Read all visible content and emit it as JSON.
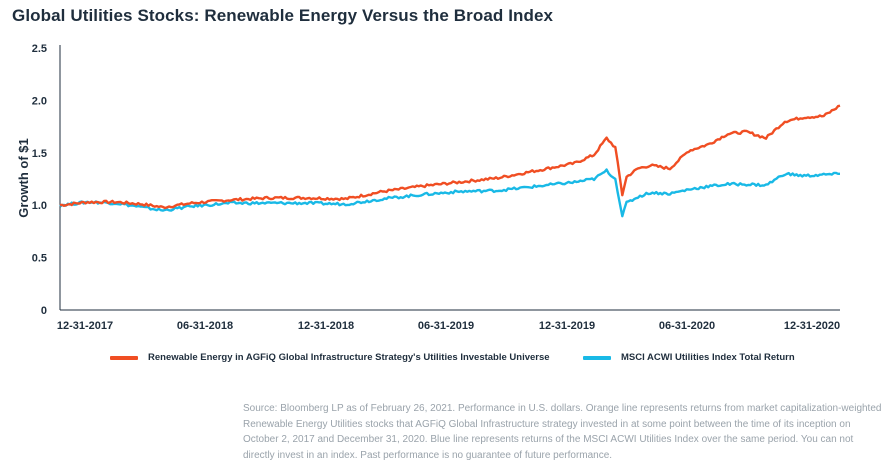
{
  "title": "Global Utilities Stocks: Renewable Energy Versus the Broad Index",
  "source_note": "Source: Bloomberg LP as of February 26, 2021. Performance in U.S. dollars. Orange line represents returns from market capitalization-weighted Renewable Energy Utilities stocks that AGFiQ Global Infrastructure strategy invested in at some point between the time of its inception on October 2, 2017 and December 31, 2020. Blue line represents returns of the MSCI ACWI Utilities Index over the same period. You can not directly invest in an index. Past performance is no guarantee of future performance.",
  "chart_data": {
    "type": "line",
    "title": "Global Utilities Stocks: Renewable Energy Versus the Broad Index",
    "ylabel": "Growth of $1",
    "xlabel": "",
    "ylim": [
      0,
      2.5
    ],
    "yticks": [
      "0",
      "0.5",
      "1.0",
      "1.5",
      "2.0",
      "2.5"
    ],
    "xticks": [
      "12-31-2017",
      "06-31-2018",
      "12-31-2018",
      "06-31-2019",
      "12-31-2019",
      "06-31-2020",
      "12-31-2020"
    ],
    "grid": false,
    "legend_position": "bottom",
    "x": [
      "2017-10-02",
      "2017-11-15",
      "2017-12-31",
      "2018-02-10",
      "2018-03-15",
      "2018-04-30",
      "2018-06-30",
      "2018-08-31",
      "2018-10-31",
      "2018-12-31",
      "2019-02-28",
      "2019-04-30",
      "2019-06-30",
      "2019-08-31",
      "2019-10-31",
      "2019-12-31",
      "2020-01-31",
      "2020-02-20",
      "2020-03-05",
      "2020-03-16",
      "2020-03-23",
      "2020-04-10",
      "2020-04-30",
      "2020-05-31",
      "2020-06-30",
      "2020-07-31",
      "2020-08-31",
      "2020-09-30",
      "2020-10-31",
      "2020-11-30",
      "2020-12-31",
      "2021-01-31",
      "2021-02-26"
    ],
    "series": [
      {
        "name": "Renewable Energy in AGFiQ Global Infrastructure Strategy's Utilities Investable Universe",
        "color": "#f04e23",
        "values": [
          1.0,
          1.03,
          1.03,
          1.01,
          0.98,
          1.02,
          1.05,
          1.07,
          1.07,
          1.06,
          1.13,
          1.18,
          1.22,
          1.26,
          1.33,
          1.4,
          1.48,
          1.64,
          1.55,
          1.1,
          1.27,
          1.35,
          1.38,
          1.35,
          1.52,
          1.58,
          1.68,
          1.7,
          1.64,
          1.8,
          1.84,
          1.85,
          1.95
        ]
      },
      {
        "name": "MSCI ACWI Utilities Index Total Return",
        "color": "#19b9e6",
        "values": [
          1.0,
          1.03,
          1.02,
          0.98,
          0.95,
          0.99,
          1.02,
          1.02,
          1.02,
          1.01,
          1.06,
          1.1,
          1.13,
          1.14,
          1.18,
          1.22,
          1.25,
          1.33,
          1.25,
          0.9,
          1.02,
          1.08,
          1.12,
          1.11,
          1.15,
          1.18,
          1.2,
          1.2,
          1.19,
          1.3,
          1.28,
          1.29,
          1.3
        ]
      }
    ]
  }
}
